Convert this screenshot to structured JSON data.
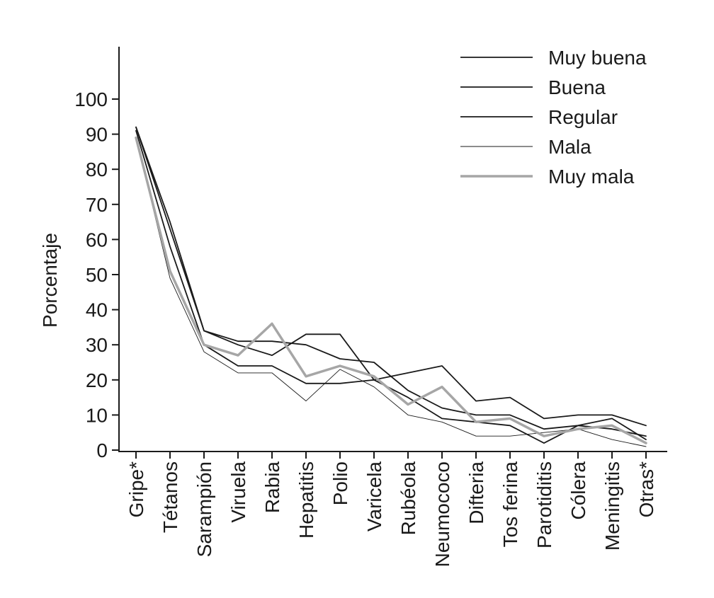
{
  "chart_data": {
    "type": "line",
    "title": "",
    "xlabel": "",
    "ylabel": "Porcentaje",
    "ylim": [
      0,
      100
    ],
    "yticks": [
      0,
      10,
      20,
      30,
      40,
      50,
      60,
      70,
      80,
      90,
      100
    ],
    "grid": false,
    "legend_position": "top-right",
    "categories": [
      "Gripe*",
      "Tétanos",
      "Sarampión",
      "Viruela",
      "Rabia",
      "Hepatitis",
      "Polio",
      "Varicela",
      "Rubéola",
      "Neumococo",
      "Difteria",
      "Tos ferina",
      "Parotiditis",
      "Cólera",
      "Meningitis",
      "Otras*"
    ],
    "series": [
      {
        "name": "Muy buena",
        "color": "#1a1a1a",
        "width": 1.8,
        "values": [
          92,
          63,
          34,
          30,
          27,
          33,
          33,
          20,
          22,
          24,
          14,
          15,
          9,
          10,
          10,
          7
        ]
      },
      {
        "name": "Buena",
        "color": "#1a1a1a",
        "width": 1.8,
        "values": [
          92,
          65,
          34,
          31,
          31,
          30,
          26,
          25,
          17,
          12,
          10,
          10,
          6,
          7,
          9,
          3
        ]
      },
      {
        "name": "Regular",
        "color": "#1a1a1a",
        "width": 1.8,
        "values": [
          91,
          58,
          30,
          24,
          24,
          19,
          19,
          20,
          15,
          9,
          8,
          7,
          2,
          7,
          6,
          4
        ]
      },
      {
        "name": "Mala",
        "color": "#1a1a1a",
        "width": 0.9,
        "values": [
          89,
          49,
          28,
          22,
          22,
          14,
          23,
          18,
          10,
          8,
          4,
          4,
          5,
          6,
          3,
          1
        ]
      },
      {
        "name": "Muy mala",
        "color": "#a6a6a6",
        "width": 3.5,
        "values": [
          89,
          51,
          30,
          27,
          36,
          21,
          24,
          21,
          13,
          18,
          8,
          9,
          4,
          6,
          7,
          2
        ]
      }
    ]
  }
}
